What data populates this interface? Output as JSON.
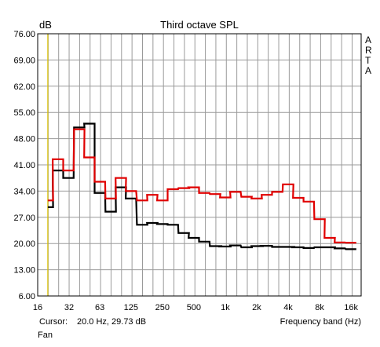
{
  "chart_data": {
    "type": "line",
    "title": "Third octave SPL",
    "ylabel": "dB",
    "xlabel": "Frequency band (Hz)",
    "brand_letters": [
      "A",
      "R",
      "T",
      "A"
    ],
    "cursor_label": "Cursor:",
    "cursor_value": "20.0 Hz, 29.73 dB",
    "footer_text": "Fan",
    "ylim": [
      6,
      76
    ],
    "xlim": [
      16,
      20000
    ],
    "x_scale": "log",
    "y_ticks": [
      6,
      13,
      20,
      27,
      34,
      41,
      48,
      55,
      62,
      69,
      76
    ],
    "y_tick_labels": [
      "6.00",
      "13.00",
      "20.00",
      "27.00",
      "34.00",
      "41.00",
      "48.00",
      "55.00",
      "62.00",
      "69.00",
      "76.00"
    ],
    "x_ticks": [
      16,
      32,
      63,
      125,
      250,
      500,
      1000,
      2000,
      4000,
      8000,
      16000
    ],
    "x_tick_labels": [
      "16",
      "32",
      "63",
      "125",
      "250",
      "500",
      "1k",
      "2k",
      "4k",
      "8k",
      "16k"
    ],
    "grid": true,
    "cursor_frequency": 20,
    "bands": [
      20,
      25,
      31.5,
      40,
      50,
      63,
      80,
      100,
      125,
      160,
      200,
      250,
      315,
      400,
      500,
      630,
      800,
      1000,
      1250,
      1600,
      2000,
      2500,
      3150,
      4000,
      5000,
      6300,
      8000,
      10000,
      12500,
      16000
    ],
    "series": [
      {
        "color": "#e00000",
        "values": [
          31.5,
          42.5,
          39.5,
          50.5,
          43,
          36.5,
          32,
          37.5,
          34,
          31.5,
          33,
          31.5,
          34.5,
          34.8,
          35,
          33.5,
          33.2,
          32.3,
          33.8,
          32.5,
          32,
          33,
          33.8,
          35.8,
          32.2,
          31.2,
          26.5,
          21.5,
          20.3,
          20.2
        ]
      },
      {
        "color": "#000000",
        "values": [
          29.7,
          39.5,
          37.5,
          51,
          52,
          33.5,
          28.5,
          35,
          32,
          25,
          25.5,
          25.2,
          25,
          22.8,
          21.5,
          20.5,
          19.3,
          19.2,
          19.5,
          19,
          19.3,
          19.4,
          19.1,
          19.1,
          19,
          18.8,
          19,
          19,
          18.7,
          18.5
        ]
      }
    ]
  }
}
